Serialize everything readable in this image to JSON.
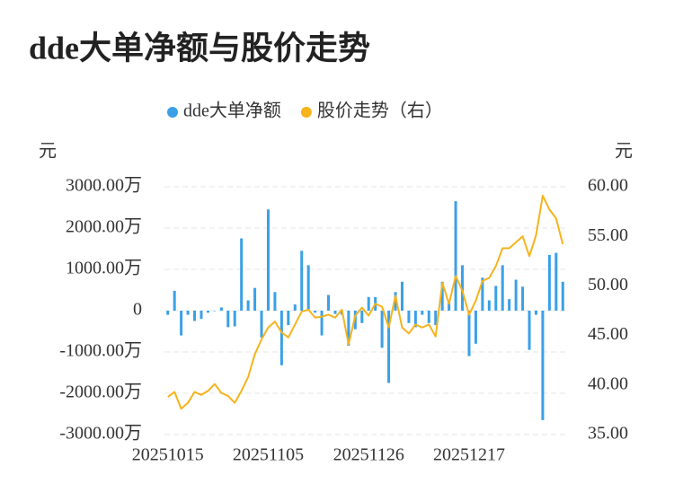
{
  "chart_data": {
    "type": "combo",
    "title": "dde大单净额与股价走势",
    "y_unit": "元",
    "y2_unit": "元",
    "categories": [
      "20251015",
      null,
      null,
      null,
      null,
      null,
      null,
      null,
      null,
      null,
      null,
      null,
      null,
      null,
      null,
      "20251105",
      null,
      null,
      null,
      null,
      null,
      null,
      null,
      null,
      null,
      null,
      null,
      null,
      null,
      null,
      "20251126",
      null,
      null,
      null,
      null,
      null,
      null,
      null,
      null,
      null,
      null,
      null,
      null,
      null,
      null,
      "20251217",
      null,
      null,
      null,
      null,
      null,
      null,
      null,
      null,
      null,
      null,
      null,
      null,
      null,
      null
    ],
    "series": [
      {
        "name": "dde大单净额",
        "type": "bar",
        "color": "#3ba0e6",
        "values": [
          -100,
          480,
          -600,
          -100,
          -250,
          -200,
          -50,
          0,
          80,
          -400,
          -380,
          1750,
          250,
          550,
          -650,
          2450,
          450,
          -1320,
          -350,
          150,
          1450,
          1100,
          -50,
          -600,
          380,
          -80,
          -100,
          -850,
          -450,
          -300,
          330,
          330,
          -900,
          -1750,
          450,
          700,
          -300,
          -400,
          -100,
          -300,
          -350,
          700,
          250,
          2650,
          1100,
          -1100,
          -800,
          800,
          250,
          600,
          1100,
          280,
          750,
          580,
          -950,
          -100,
          -2650,
          1350,
          1400,
          700
        ]
      },
      {
        "name": "股价走势（右）",
        "type": "line",
        "axis": "y2",
        "color": "#f5b31c",
        "values": [
          38.8,
          39.3,
          37.6,
          38.2,
          39.3,
          39.0,
          39.4,
          40.1,
          39.2,
          38.9,
          38.2,
          39.4,
          40.8,
          43.1,
          44.6,
          45.8,
          46.4,
          45.3,
          44.8,
          46.1,
          47.4,
          47.6,
          46.8,
          46.9,
          47.1,
          46.8,
          47.6,
          44.1,
          47.0,
          47.8,
          47.0,
          48.2,
          47.9,
          45.8,
          49.0,
          45.8,
          45.2,
          46.1,
          45.8,
          46.1,
          44.9,
          50.3,
          48.2,
          51.0,
          49.5,
          47.1,
          48.5,
          50.5,
          50.8,
          52.0,
          53.8,
          53.8,
          54.4,
          55.0,
          53.0,
          55.1,
          59.1,
          57.7,
          56.8,
          54.2
        ]
      }
    ],
    "ylim": [
      -3000,
      3000
    ],
    "yticks": [
      {
        "value": -3000,
        "label": "-3000.00万"
      },
      {
        "value": -2000,
        "label": "-2000.00万"
      },
      {
        "value": -1000,
        "label": "-1000.00万"
      },
      0,
      {
        "value": 1000,
        "label": "1000.00万"
      },
      {
        "value": 2000,
        "label": "2000.00万"
      },
      {
        "value": 3000,
        "label": "3000.00万"
      }
    ],
    "y2lim": [
      35,
      60
    ],
    "y2ticks": [
      {
        "value": 35,
        "label": "35.00"
      },
      {
        "value": 40,
        "label": "40.00"
      },
      {
        "value": 45,
        "label": "45.00"
      },
      {
        "value": 50,
        "label": "50.00"
      },
      {
        "value": 55,
        "label": "55.00"
      },
      {
        "value": 60,
        "label": "60.00"
      }
    ],
    "grid": true
  }
}
